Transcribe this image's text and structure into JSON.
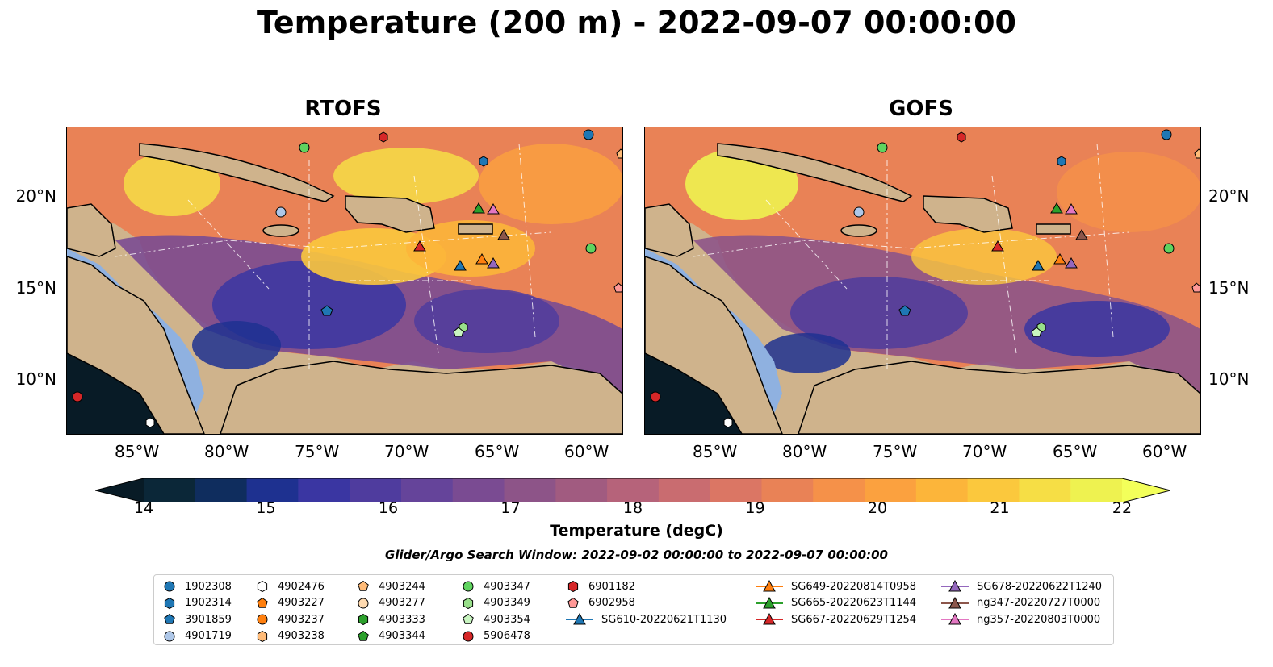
{
  "title": "Temperature (200 m) - 2022-09-07 00:00:00",
  "panels": [
    {
      "title": "RTOFS"
    },
    {
      "title": "GOFS"
    }
  ],
  "lon_labels": [
    "85°W",
    "80°W",
    "75°W",
    "70°W",
    "65°W",
    "60°W"
  ],
  "lat_labels": [
    "20°N",
    "15°N",
    "10°N"
  ],
  "colorbar": {
    "label": "Temperature (degC)",
    "ticks": [
      "14",
      "15",
      "16",
      "17",
      "18",
      "19",
      "20",
      "21",
      "22"
    ],
    "colors": [
      "#0b2738",
      "#0f2d5e",
      "#1e3190",
      "#3a36a2",
      "#4f3c9e",
      "#65449a",
      "#7a4b92",
      "#8d5488",
      "#a15b80",
      "#b6637a",
      "#c96c70",
      "#db7664",
      "#e98256",
      "#f59149",
      "#fba13f",
      "#fcb53a",
      "#fbc83d",
      "#f6de45",
      "#eef250"
    ],
    "under_color": "#081b26",
    "over_color": "#f3ff5a"
  },
  "search_window": "Glider/Argo Search Window: 2022-09-02 00:00:00 to 2022-09-07 00:00:00",
  "legend": [
    {
      "label": "1902308",
      "marker": "circle",
      "color": "#1f77b4"
    },
    {
      "label": "1902314",
      "marker": "hexagon",
      "color": "#1f77b4"
    },
    {
      "label": "3901859",
      "marker": "pentagon",
      "color": "#1f77b4"
    },
    {
      "label": "4901719",
      "marker": "circle",
      "color": "#aec7e8"
    },
    {
      "label": "4902476",
      "marker": "hexagon",
      "color": "#ffffff"
    },
    {
      "label": "4903227",
      "marker": "pentagon",
      "color": "#ff7f0e"
    },
    {
      "label": "4903237",
      "marker": "circle",
      "color": "#ff7f0e"
    },
    {
      "label": "4903238",
      "marker": "hexagon",
      "color": "#ffbb78"
    },
    {
      "label": "4903244",
      "marker": "pentagon",
      "color": "#ffbb78"
    },
    {
      "label": "4903277",
      "marker": "circle",
      "color": "#ffdab0"
    },
    {
      "label": "4903333",
      "marker": "hexagon",
      "color": "#2ca02c"
    },
    {
      "label": "4903344",
      "marker": "pentagon",
      "color": "#2ca02c"
    },
    {
      "label": "4903347",
      "marker": "circle",
      "color": "#5fd35f"
    },
    {
      "label": "4903349",
      "marker": "hexagon",
      "color": "#98df8a"
    },
    {
      "label": "4903354",
      "marker": "pentagon",
      "color": "#c8f5c0"
    },
    {
      "label": "5906478",
      "marker": "circle",
      "color": "#d62728"
    },
    {
      "label": "6901182",
      "marker": "hexagon",
      "color": "#d62728"
    },
    {
      "label": "6902958",
      "marker": "pentagon",
      "color": "#ff9896"
    },
    {
      "label": "SG610-20220621T1130",
      "marker": "triangle-line",
      "color": "#1f77b4"
    },
    {
      "label": "SG649-20220814T0958",
      "marker": "triangle-line",
      "color": "#ff7f0e"
    },
    {
      "label": "SG665-20220623T1144",
      "marker": "triangle-line",
      "color": "#2ca02c"
    },
    {
      "label": "SG667-20220629T1254",
      "marker": "triangle-line",
      "color": "#d62728"
    },
    {
      "label": "SG678-20220622T1240",
      "marker": "triangle-line",
      "color": "#9467bd"
    },
    {
      "label": "ng347-20220727T0000",
      "marker": "triangle-line",
      "color": "#8c564b"
    },
    {
      "label": "ng357-20220803T0000",
      "marker": "triangle-line",
      "color": "#e377c2"
    }
  ]
}
